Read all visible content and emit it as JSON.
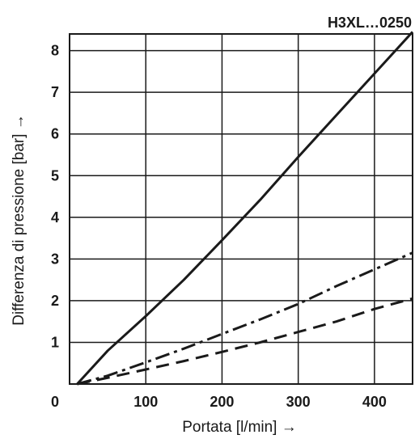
{
  "chart_data": {
    "type": "line",
    "title": "H3XL…0250",
    "xlabel": "Portata [l/min] →",
    "ylabel": "Differenza di pressione [bar] →",
    "xlim": [
      0,
      450
    ],
    "ylim": [
      0,
      8.4
    ],
    "x_ticks": [
      0,
      100,
      200,
      300,
      400
    ],
    "y_ticks": [
      1,
      2,
      3,
      4,
      5,
      6,
      7,
      8
    ],
    "x_gridlines": [
      100,
      200,
      300,
      400
    ],
    "y_gridlines": [
      1,
      2,
      3,
      4,
      5,
      6,
      7,
      8
    ],
    "grid": true,
    "legend": "none",
    "series": [
      {
        "line_style": "solid",
        "x": [
          10,
          50,
          100,
          150,
          200,
          250,
          300,
          350,
          400,
          450
        ],
        "y": [
          0,
          0.8,
          1.63,
          2.5,
          3.45,
          4.42,
          5.45,
          6.45,
          7.45,
          8.45
        ]
      },
      {
        "line_style": "dashdot",
        "x": [
          10,
          50,
          100,
          150,
          200,
          250,
          300,
          350,
          400,
          450
        ],
        "y": [
          0,
          0.2,
          0.52,
          0.85,
          1.2,
          1.55,
          1.92,
          2.35,
          2.75,
          3.15
        ]
      },
      {
        "line_style": "dashed",
        "x": [
          10,
          50,
          100,
          150,
          200,
          250,
          300,
          350,
          400,
          450
        ],
        "y": [
          0,
          0.15,
          0.35,
          0.55,
          0.77,
          1.0,
          1.25,
          1.5,
          1.8,
          2.05
        ]
      }
    ]
  }
}
